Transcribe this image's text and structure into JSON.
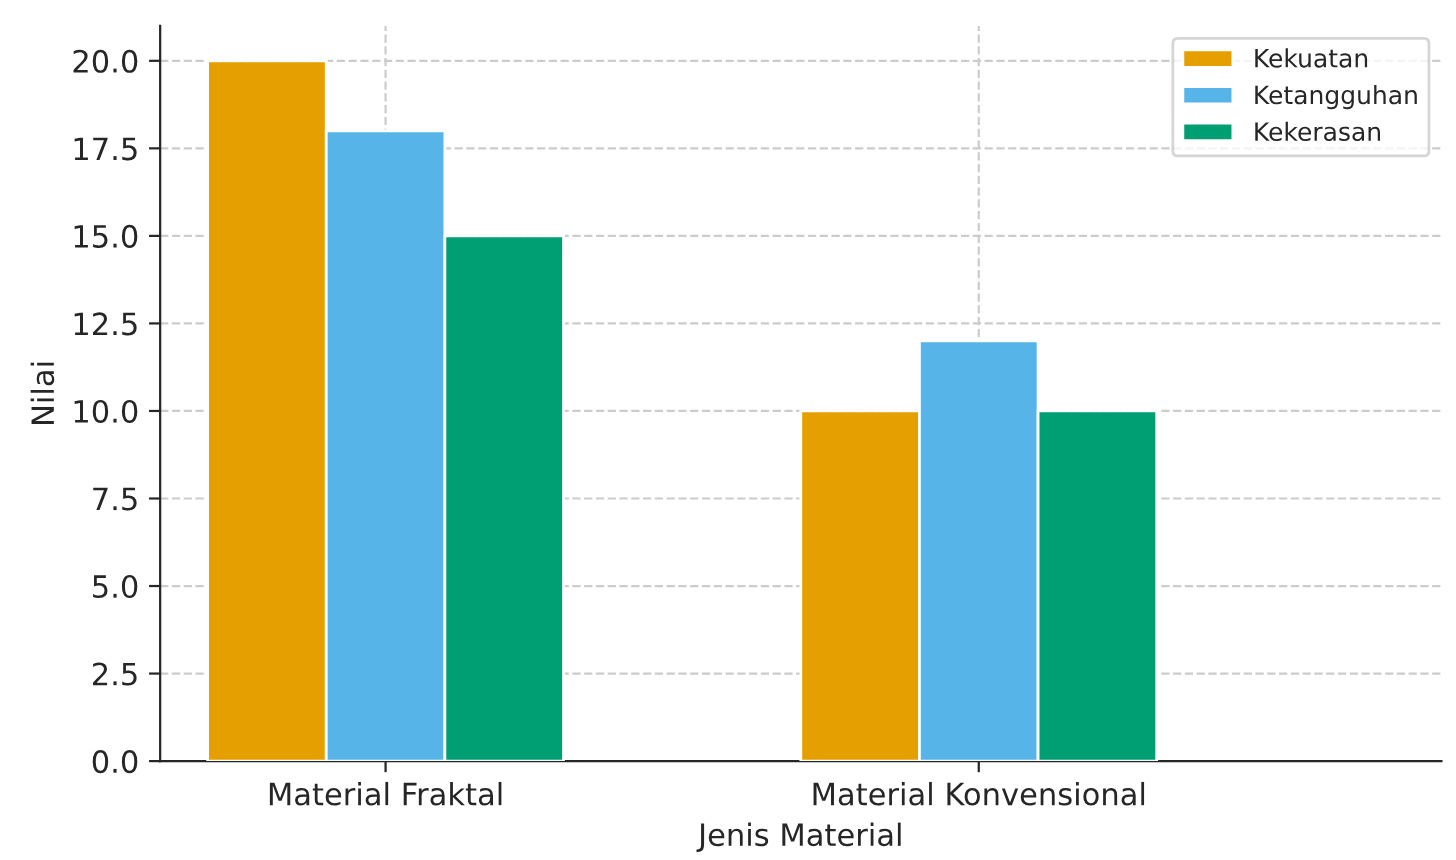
{
  "chart_data": {
    "type": "bar",
    "xlabel": "Jenis Material",
    "ylabel": "Nilai",
    "categories": [
      "Material Fraktal",
      "Material Konvensional"
    ],
    "series": [
      {
        "name": "Kekuatan",
        "color": "#e69f00",
        "values": [
          20,
          10
        ]
      },
      {
        "name": "Ketangguhan",
        "color": "#56b4e9",
        "values": [
          18,
          12
        ]
      },
      {
        "name": "Kekerasan",
        "color": "#009e73",
        "values": [
          15,
          10
        ]
      }
    ],
    "ylim": [
      0,
      21
    ],
    "yticks": [
      {
        "value": 0,
        "label": "0.0"
      },
      {
        "value": 2.5,
        "label": "2.5"
      },
      {
        "value": 5,
        "label": "5.0"
      },
      {
        "value": 7.5,
        "label": "7.5"
      },
      {
        "value": 10,
        "label": "10.0"
      },
      {
        "value": 12.5,
        "label": "12.5"
      },
      {
        "value": 15,
        "label": "15.0"
      },
      {
        "value": 17.5,
        "label": "17.5"
      },
      {
        "value": 20,
        "label": "20.0"
      }
    ],
    "grid": true,
    "legend": "top right"
  }
}
